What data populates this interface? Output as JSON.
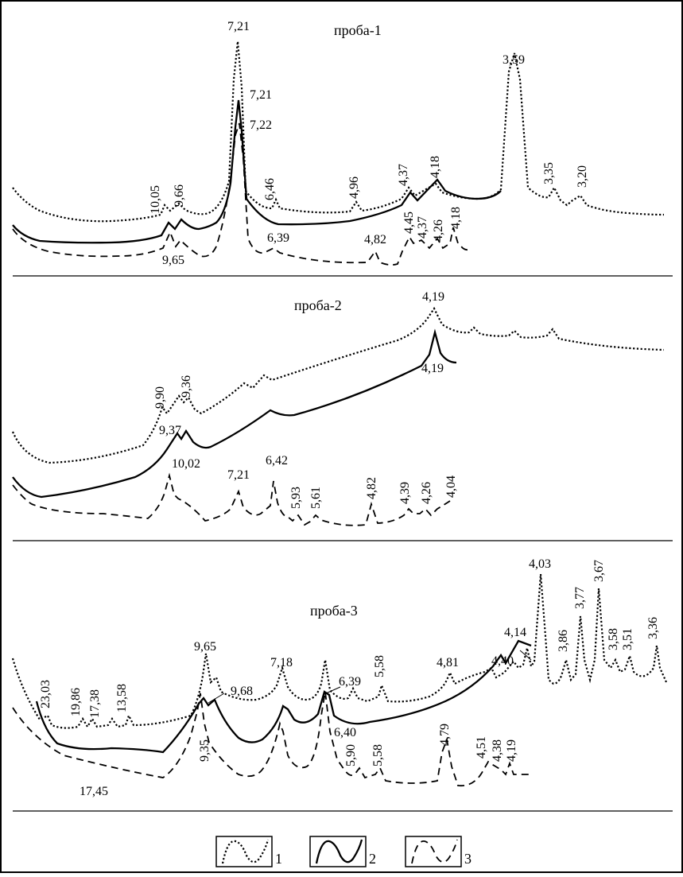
{
  "chart_data": [
    {
      "type": "line",
      "title": "проба-1",
      "xlabel": "",
      "ylabel": "",
      "x_axis_note": "d-spacing (Å), decreasing left to right",
      "series": [
        {
          "name": "1",
          "style": "dotted",
          "peaks": [
            {
              "d": "10,05"
            },
            {
              "d": "9,66"
            },
            {
              "d": "7,21"
            },
            {
              "d": "6,46"
            },
            {
              "d": "4,96"
            },
            {
              "d": "4,37"
            },
            {
              "d": "4,18"
            },
            {
              "d": "3,59"
            },
            {
              "d": "3,35"
            },
            {
              "d": "3,20"
            }
          ]
        },
        {
          "name": "2",
          "style": "solid",
          "peaks": [
            {
              "d": "7,21"
            },
            {
              "d": "4,37"
            },
            {
              "d": "4,18"
            }
          ]
        },
        {
          "name": "3",
          "style": "dashed",
          "peaks": [
            {
              "d": "9,65"
            },
            {
              "d": "7,22"
            },
            {
              "d": "6,39"
            },
            {
              "d": "4,82"
            },
            {
              "d": "4,45"
            },
            {
              "d": "4,37"
            },
            {
              "d": "4,26"
            },
            {
              "d": "4,18"
            }
          ]
        }
      ]
    },
    {
      "type": "line",
      "title": "проба-2",
      "xlabel": "",
      "ylabel": "",
      "series": [
        {
          "name": "1",
          "style": "dotted",
          "peaks": [
            {
              "d": "9,90"
            },
            {
              "d": "9,36"
            },
            {
              "d": "4,19"
            }
          ]
        },
        {
          "name": "2",
          "style": "solid",
          "peaks": [
            {
              "d": "9,37"
            },
            {
              "d": "4,19"
            }
          ]
        },
        {
          "name": "3",
          "style": "dashed",
          "peaks": [
            {
              "d": "10,02"
            },
            {
              "d": "7,21"
            },
            {
              "d": "6,42"
            },
            {
              "d": "5,93"
            },
            {
              "d": "5,61"
            },
            {
              "d": "4,82"
            },
            {
              "d": "4,39"
            },
            {
              "d": "4,26"
            },
            {
              "d": "4,04"
            }
          ]
        }
      ]
    },
    {
      "type": "line",
      "title": "проба-3",
      "xlabel": "",
      "ylabel": "",
      "series": [
        {
          "name": "1",
          "style": "dotted",
          "peaks": [
            {
              "d": "23,03"
            },
            {
              "d": "19,86"
            },
            {
              "d": "17,38"
            },
            {
              "d": "13,58"
            },
            {
              "d": "9,65"
            },
            {
              "d": "7,18"
            },
            {
              "d": "6,39"
            },
            {
              "d": "5,58"
            },
            {
              "d": "4,81"
            },
            {
              "d": "4,40"
            },
            {
              "d": "4,03"
            },
            {
              "d": "3,86"
            },
            {
              "d": "3,77"
            },
            {
              "d": "3,67"
            },
            {
              "d": "3,58"
            },
            {
              "d": "3,51"
            },
            {
              "d": "3,36"
            }
          ]
        },
        {
          "name": "2",
          "style": "solid",
          "peaks": [
            {
              "d": "9,68"
            },
            {
              "d": "6,39"
            },
            {
              "d": "4,14"
            }
          ]
        },
        {
          "name": "3",
          "style": "dashed",
          "peaks": [
            {
              "d": "17,45"
            },
            {
              "d": "9,35"
            },
            {
              "d": "6,40"
            },
            {
              "d": "5,90"
            },
            {
              "d": "5,58"
            },
            {
              "d": "4,79"
            },
            {
              "d": "4,51"
            },
            {
              "d": "4,38"
            },
            {
              "d": "4,19"
            }
          ]
        }
      ]
    }
  ],
  "legend": {
    "items": [
      {
        "label": "1",
        "style": "dotted"
      },
      {
        "label": "2",
        "style": "solid"
      },
      {
        "label": "3",
        "style": "dashed"
      }
    ],
    "placement": "bottom-center"
  }
}
